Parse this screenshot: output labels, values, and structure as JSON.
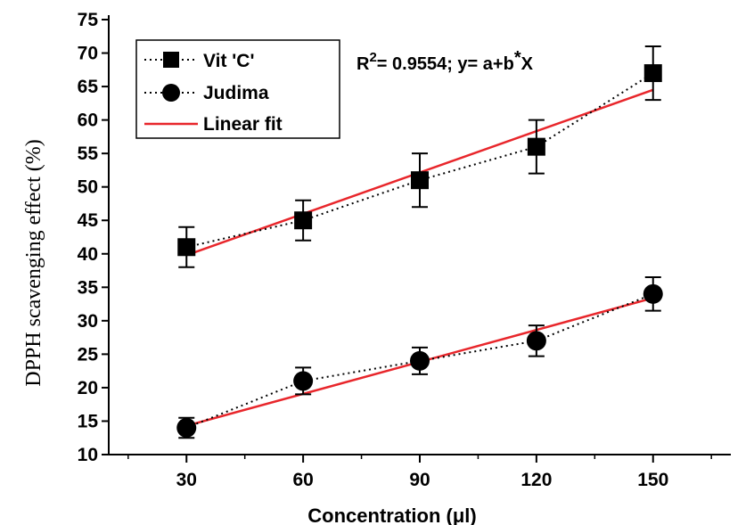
{
  "chart_data": {
    "type": "line",
    "title": "",
    "xlabel": "Concentration (μl)",
    "ylabel": "DPPH scavenging effect (%)",
    "x": [
      30,
      60,
      90,
      120,
      150
    ],
    "xticks": [
      30,
      60,
      90,
      120,
      150
    ],
    "xlim": [
      10,
      170
    ],
    "yticks": [
      10,
      15,
      20,
      25,
      30,
      35,
      40,
      45,
      50,
      55,
      60,
      65,
      70,
      75
    ],
    "ylim": [
      10,
      75
    ],
    "grid": false,
    "legend_position": "top-left",
    "annotation": {
      "prefix": "R",
      "superscript": "2",
      "text": "= 0.9554; y= a+b",
      "star": "*",
      "tail": "X"
    },
    "series": [
      {
        "name": "Vit 'C'",
        "marker": "square",
        "line_style": "dotted",
        "color": "#000000",
        "values": [
          41,
          45,
          51,
          56,
          67
        ],
        "errors": [
          3,
          3,
          4,
          4,
          4
        ]
      },
      {
        "name": "Judima",
        "marker": "circle",
        "line_style": "dotted",
        "color": "#000000",
        "values": [
          14,
          21,
          24,
          27,
          34
        ],
        "errors": [
          1.5,
          2,
          2,
          2.3,
          2.5
        ]
      }
    ],
    "fits": [
      {
        "name": "Linear fit",
        "color": "#e8262b",
        "of_series": "Vit 'C'",
        "y_start": 39.8,
        "y_end": 64.5
      },
      {
        "name": "",
        "color": "#e8262b",
        "of_series": "Judima",
        "y_start": 14.3,
        "y_end": 33.4
      }
    ]
  }
}
